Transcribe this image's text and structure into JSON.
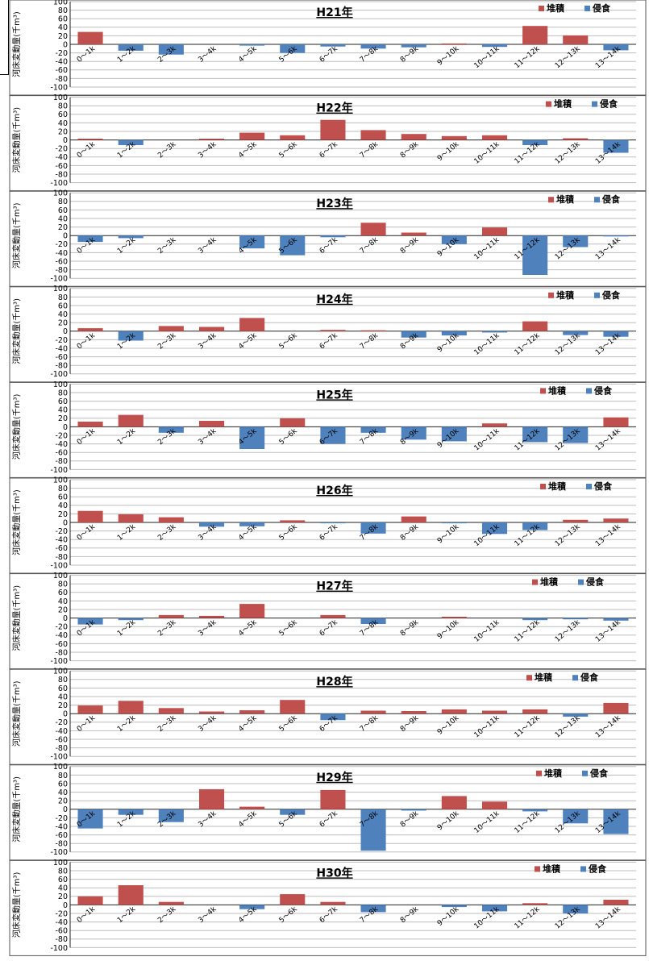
{
  "chart_data": [
    {
      "type": "bar",
      "title": "H21年",
      "ylabel": "河床変動量(千m³)",
      "ylim": [
        -100,
        100
      ],
      "yticks": [
        100,
        80,
        60,
        40,
        20,
        0,
        -20,
        -40,
        -60,
        -80,
        -100
      ],
      "legend": [
        "堆積",
        "侵食"
      ],
      "legend_position": "top-right",
      "categories": [
        "0〜1k",
        "1〜2k",
        "2〜3k",
        "3〜4k",
        "4〜5k",
        "5〜6k",
        "6〜7k",
        "7〜8k",
        "8〜9k",
        "9〜10k",
        "10〜11k",
        "11〜12k",
        "12〜13k",
        "13〜14k"
      ],
      "values": [
        29,
        -15,
        -24,
        0,
        -3,
        -20,
        -5,
        -10,
        -7,
        2,
        -6,
        43,
        21,
        -14
      ]
    },
    {
      "type": "bar",
      "title": "H22年",
      "ylabel": "河床変動量(千m³)",
      "ylim": [
        -100,
        100
      ],
      "yticks": [
        100,
        80,
        60,
        40,
        20,
        0,
        -20,
        -40,
        -60,
        -80,
        -100
      ],
      "legend": [
        "堆積",
        "侵食"
      ],
      "legend_position": "top-right",
      "categories": [
        "0〜1k",
        "1〜2k",
        "2〜3k",
        "3〜4k",
        "4〜5k",
        "5〜6k",
        "6〜7k",
        "7〜8k",
        "8〜9k",
        "9〜10k",
        "10〜11k",
        "11〜12k",
        "12〜13k",
        "13〜14k"
      ],
      "values": [
        3,
        -12,
        0,
        3,
        17,
        11,
        47,
        23,
        14,
        9,
        11,
        -12,
        4,
        -30
      ]
    },
    {
      "type": "bar",
      "title": "H23年",
      "ylabel": "河床変動量(千m³)",
      "ylim": [
        -100,
        100
      ],
      "yticks": [
        100,
        80,
        60,
        40,
        20,
        0,
        -20,
        -40,
        -60,
        -80,
        -100
      ],
      "legend": [
        "堆積",
        "侵食"
      ],
      "legend_position": "top-right",
      "categories": [
        "0〜1k",
        "1〜2k",
        "2〜3k",
        "3〜4k",
        "4〜5k",
        "5〜6k",
        "6〜7k",
        "7〜8k",
        "8〜9k",
        "9〜10k",
        "10〜11k",
        "11〜12k",
        "12〜13k",
        "13〜14k"
      ],
      "values": [
        -15,
        -6,
        0,
        0,
        -30,
        -46,
        -4,
        30,
        7,
        -20,
        19,
        -92,
        -27,
        -2
      ]
    },
    {
      "type": "bar",
      "title": "H24年",
      "ylabel": "河床変動量(千m³)",
      "ylim": [
        -100,
        100
      ],
      "yticks": [
        100,
        80,
        60,
        40,
        20,
        0,
        -20,
        -40,
        -60,
        -80,
        -100
      ],
      "legend": [
        "堆積",
        "侵食"
      ],
      "legend_position": "top-right",
      "categories": [
        "0〜1k",
        "1〜2k",
        "2〜3k",
        "3〜4k",
        "4〜5k",
        "5〜6k",
        "6〜7k",
        "7〜8k",
        "8〜9k",
        "9〜10k",
        "10〜11k",
        "11〜12k",
        "12〜13k",
        "13〜14k"
      ],
      "values": [
        7,
        -22,
        12,
        10,
        31,
        0,
        3,
        2,
        -15,
        -10,
        -3,
        23,
        -9,
        -13
      ]
    },
    {
      "type": "bar",
      "title": "H25年",
      "ylabel": "河床変動量(千m³)",
      "ylim": [
        -100,
        100
      ],
      "yticks": [
        100,
        80,
        60,
        40,
        20,
        0,
        -20,
        -40,
        -60,
        -80,
        -100
      ],
      "legend": [
        "堆積",
        "侵食"
      ],
      "legend_position": "top-right",
      "categories": [
        "0〜1k",
        "1〜2k",
        "2〜3k",
        "3〜4k",
        "4〜5k",
        "5〜6k",
        "6〜7k",
        "7〜8k",
        "8〜9k",
        "9〜10k",
        "10〜11k",
        "11〜12k",
        "12〜13k",
        "13〜14k"
      ],
      "values": [
        12,
        28,
        -14,
        14,
        -52,
        20,
        -40,
        -14,
        -30,
        -34,
        8,
        -36,
        -38,
        22
      ]
    },
    {
      "type": "bar",
      "title": "H26年",
      "ylabel": "河床変動量(千m³)",
      "ylim": [
        -100,
        100
      ],
      "yticks": [
        100,
        80,
        60,
        40,
        20,
        0,
        -20,
        -40,
        -60,
        -80,
        -100
      ],
      "legend": [
        "堆積",
        "侵食"
      ],
      "legend_position": "top-right",
      "categories": [
        "0〜1k",
        "1〜2k",
        "2〜3k",
        "3〜4k",
        "4〜5k",
        "5〜6k",
        "6〜7k",
        "7〜8k",
        "8〜9k",
        "9〜10k",
        "10〜11k",
        "11〜12k",
        "12〜13k",
        "13〜14k"
      ],
      "values": [
        27,
        19,
        12,
        -10,
        -9,
        5,
        -2,
        -26,
        14,
        -2,
        -27,
        -18,
        6,
        9
      ]
    },
    {
      "type": "bar",
      "title": "H27年",
      "ylabel": "河床変動量(千m³)",
      "ylim": [
        -100,
        100
      ],
      "yticks": [
        100,
        80,
        60,
        40,
        20,
        0,
        -20,
        -40,
        -60,
        -80,
        -100
      ],
      "legend": [
        "堆積",
        "侵食"
      ],
      "legend_position": "top-right",
      "categories": [
        "0〜1k",
        "1〜2k",
        "2〜3k",
        "3〜4k",
        "4〜5k",
        "5〜6k",
        "6〜7k",
        "7〜8k",
        "8〜9k",
        "9〜10k",
        "10〜11k",
        "11〜12k",
        "12〜13k",
        "13〜14k"
      ],
      "values": [
        -15,
        -5,
        7,
        5,
        33,
        0,
        7,
        -14,
        0,
        3,
        0,
        -5,
        -3,
        -6
      ]
    },
    {
      "type": "bar",
      "title": "H28年",
      "ylabel": "河床変動量(千m³)",
      "ylim": [
        -100,
        100
      ],
      "yticks": [
        100,
        80,
        60,
        40,
        20,
        0,
        -20,
        -40,
        -60,
        -80,
        -100
      ],
      "legend": [
        "堆積",
        "侵食"
      ],
      "legend_position": "top-right",
      "categories": [
        "0〜1k",
        "1〜2k",
        "2〜3k",
        "3〜4k",
        "4〜5k",
        "5〜6k",
        "6〜7k",
        "7〜8k",
        "8〜9k",
        "9〜10k",
        "10〜11k",
        "11〜12k",
        "12〜13k",
        "13〜14k"
      ],
      "values": [
        19,
        30,
        13,
        5,
        8,
        32,
        -15,
        7,
        6,
        10,
        7,
        10,
        -7,
        25
      ]
    },
    {
      "type": "bar",
      "title": "H29年",
      "ylabel": "河床変動量(千m³)",
      "ylim": [
        -100,
        100
      ],
      "yticks": [
        100,
        80,
        60,
        40,
        20,
        0,
        -20,
        -40,
        -60,
        -80,
        -100
      ],
      "legend": [
        "堆積",
        "侵食"
      ],
      "legend_position": "top-right",
      "categories": [
        "0〜1k",
        "1〜2k",
        "2〜3k",
        "3〜4k",
        "4〜5k",
        "5〜6k",
        "6〜7k",
        "7〜8k",
        "8〜9k",
        "9〜10k",
        "10〜11k",
        "11〜12k",
        "12〜13k",
        "13〜14k"
      ],
      "values": [
        -45,
        -13,
        -30,
        47,
        6,
        -13,
        45,
        -97,
        -3,
        31,
        18,
        -5,
        -33,
        -58
      ]
    },
    {
      "type": "bar",
      "title": "H30年",
      "ylabel": "河床変動量(千m³)",
      "ylim": [
        -100,
        100
      ],
      "yticks": [
        100,
        80,
        60,
        40,
        20,
        0,
        -20,
        -40,
        -60,
        -80,
        -100
      ],
      "legend": [
        "堆積",
        "侵食"
      ],
      "legend_position": "top-right",
      "categories": [
        "0〜1k",
        "1〜2k",
        "2〜3k",
        "3〜4k",
        "4〜5k",
        "5〜6k",
        "6〜7k",
        "7〜8k",
        "8〜9k",
        "9〜10k",
        "10〜11k",
        "11〜12k",
        "12〜13k",
        "13〜14k"
      ],
      "values": [
        20,
        46,
        7,
        0,
        -10,
        25,
        7,
        -17,
        0,
        -5,
        -15,
        4,
        -20,
        12
      ]
    }
  ],
  "colors": {
    "deposition": "#c0504d",
    "erosion": "#4f81bd"
  }
}
